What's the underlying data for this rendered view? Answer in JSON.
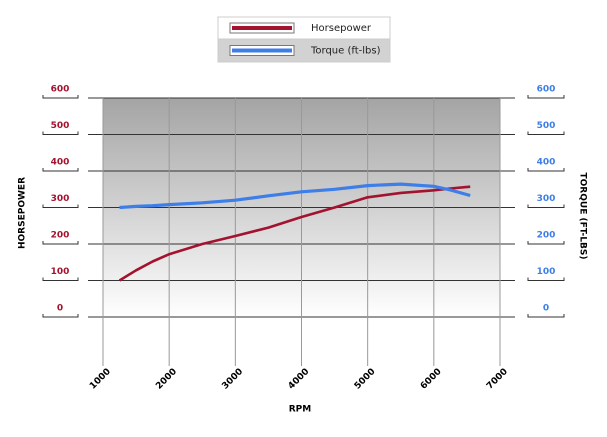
{
  "chart_data": {
    "type": "line",
    "x_label": "RPM",
    "y_label": "HORSEPOWER",
    "y2_label": "TORQUE (FT-LBS)",
    "x": [
      1250,
      1500,
      1750,
      2000,
      2500,
      3000,
      3500,
      4000,
      4500,
      5000,
      5500,
      6000,
      6250,
      6550
    ],
    "series": [
      {
        "name": "Horsepower",
        "color": "#a3122e",
        "values": [
          100,
          128,
          152,
          172,
          200,
          222,
          245,
          274,
          300,
          328,
          340,
          347,
          352,
          357
        ]
      },
      {
        "name": "Torque (ft-lbs)",
        "color": "#3d7ee8",
        "axis": "y2",
        "values": [
          300,
          303,
          305,
          308,
          313,
          320,
          332,
          343,
          350,
          360,
          364,
          358,
          348,
          333
        ]
      }
    ],
    "xlim": [
      1000,
      7000
    ],
    "xticks": [
      1000,
      2000,
      3000,
      4000,
      5000,
      6000,
      7000
    ],
    "ylim": [
      0,
      600
    ],
    "yticks": [
      0,
      100,
      200,
      300,
      400,
      500,
      600
    ],
    "y2lim": [
      0,
      600
    ],
    "y2ticks": [
      0,
      100,
      200,
      300,
      400,
      500,
      600
    ],
    "grid": true
  }
}
